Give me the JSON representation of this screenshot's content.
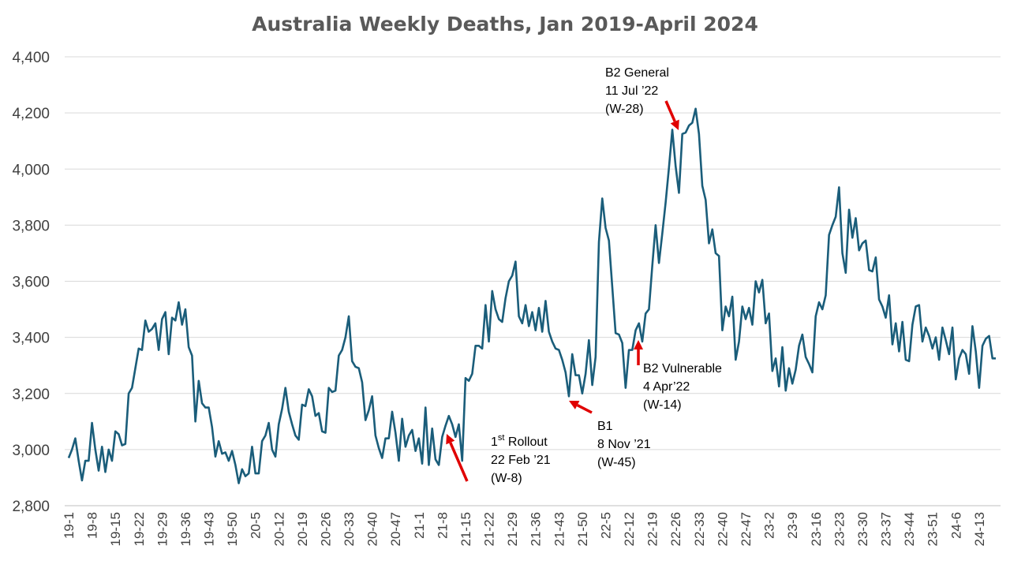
{
  "chart_data": {
    "type": "line",
    "title": "Australia Weekly Deaths, Jan 2019-April 2024",
    "xlabel": "",
    "ylabel": "",
    "ylim": [
      2800,
      4400
    ],
    "yticks": [
      2800,
      3000,
      3200,
      3400,
      3600,
      3800,
      4000,
      4200,
      4400
    ],
    "ytick_labels": [
      "2,800",
      "3,000",
      "3,200",
      "3,400",
      "3,600",
      "3,800",
      "4,000",
      "4,200",
      "4,400"
    ],
    "grid": true,
    "legend": "none",
    "x_tick_labels": [
      "19-1",
      "19-8",
      "19-15",
      "19-22",
      "19-29",
      "19-36",
      "19-43",
      "19-50",
      "20-5",
      "20-12",
      "20-19",
      "20-26",
      "20-33",
      "20-40",
      "20-47",
      "21-1",
      "21-8",
      "21-15",
      "21-22",
      "21-29",
      "21-36",
      "21-43",
      "21-50",
      "22-5",
      "22-12",
      "22-19",
      "22-26",
      "22-33",
      "22-40",
      "22-47",
      "23-2",
      "23-9",
      "23-16",
      "23-23",
      "23-30",
      "23-37",
      "23-44",
      "23-51",
      "24-6",
      "24-13"
    ],
    "series": [
      {
        "color": "#1a5d7a",
        "values": [
          2970,
          3000,
          3040,
          2960,
          2890,
          2960,
          2960,
          3095,
          3000,
          2925,
          3010,
          2920,
          3000,
          2960,
          3065,
          3055,
          3015,
          3020,
          3200,
          3220,
          3290,
          3360,
          3355,
          3460,
          3420,
          3430,
          3450,
          3355,
          3465,
          3490,
          3340,
          3470,
          3460,
          3525,
          3445,
          3500,
          3365,
          3335,
          3100,
          3245,
          3165,
          3150,
          3150,
          3080,
          2975,
          3030,
          2985,
          2990,
          2960,
          2995,
          2945,
          2880,
          2930,
          2905,
          2915,
          3010,
          2915,
          2915,
          3030,
          3050,
          3095,
          3000,
          2975,
          3090,
          3145,
          3220,
          3135,
          3090,
          3050,
          3035,
          3160,
          3155,
          3215,
          3190,
          3120,
          3130,
          3065,
          3060,
          3220,
          3205,
          3210,
          3335,
          3355,
          3400,
          3475,
          3315,
          3295,
          3290,
          3240,
          3105,
          3140,
          3190,
          3050,
          3005,
          2970,
          3040,
          3040,
          3135,
          3060,
          2960,
          3110,
          3010,
          3050,
          3070,
          2995,
          3040,
          2950,
          3150,
          2945,
          3075,
          2965,
          2945,
          3045,
          3085,
          3120,
          3090,
          3045,
          3090,
          2960,
          3255,
          3245,
          3270,
          3370,
          3370,
          3360,
          3515,
          3385,
          3565,
          3500,
          3465,
          3455,
          3540,
          3600,
          3620,
          3670,
          3475,
          3450,
          3515,
          3440,
          3490,
          3425,
          3505,
          3420,
          3530,
          3420,
          3385,
          3360,
          3355,
          3320,
          3275,
          3190,
          3340,
          3265,
          3265,
          3200,
          3270,
          3390,
          3230,
          3330,
          3740,
          3895,
          3790,
          3745,
          3580,
          3415,
          3410,
          3380,
          3220,
          3355,
          3355,
          3425,
          3450,
          3385,
          3485,
          3500,
          3655,
          3800,
          3665,
          3770,
          3880,
          4005,
          4140,
          4010,
          3915,
          4125,
          4130,
          4155,
          4165,
          4215,
          4125,
          3940,
          3890,
          3735,
          3785,
          3700,
          3690,
          3425,
          3510,
          3475,
          3545,
          3320,
          3385,
          3510,
          3465,
          3505,
          3445,
          3600,
          3560,
          3605,
          3450,
          3485,
          3280,
          3325,
          3225,
          3365,
          3210,
          3290,
          3235,
          3285,
          3370,
          3410,
          3330,
          3305,
          3275,
          3475,
          3525,
          3500,
          3550,
          3765,
          3800,
          3830,
          3935,
          3700,
          3630,
          3855,
          3755,
          3825,
          3710,
          3735,
          3745,
          3640,
          3635,
          3685,
          3535,
          3510,
          3470,
          3550,
          3375,
          3450,
          3350,
          3455,
          3320,
          3315,
          3445,
          3510,
          3515,
          3385,
          3435,
          3405,
          3360,
          3400,
          3320,
          3435,
          3390,
          3340,
          3435,
          3250,
          3325,
          3355,
          3340,
          3270,
          3440,
          3350,
          3220,
          3370,
          3395,
          3405,
          3325,
          3325
        ]
      }
    ],
    "annotations": [
      {
        "lines": [
          "B2 General",
          "11 Jul ’22",
          "(W-28)"
        ]
      },
      {
        "lines": [
          "B2 Vulnerable",
          "4 Apr’22",
          "(W-14)"
        ]
      },
      {
        "lines": [
          "B1",
          "8 Nov ’21",
          "(W-45)"
        ]
      },
      {
        "sup_prefix": "1",
        "sup": "st",
        "first_rest": " Rollout",
        "lines": [
          "22 Feb ’21",
          "(W-8)"
        ]
      }
    ],
    "arrow_color": "#e00000"
  }
}
